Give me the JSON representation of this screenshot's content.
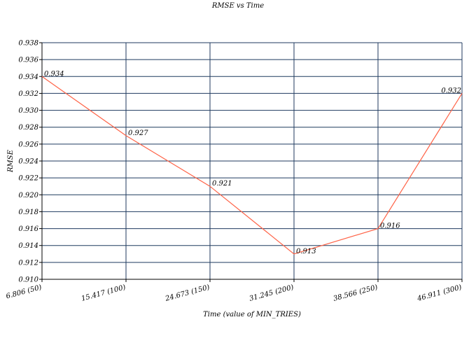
{
  "chart_data": {
    "type": "line",
    "title": "RMSE vs Time",
    "xlabel": "Time (value of MIN_TRIES)",
    "ylabel": "RMSE",
    "categories": [
      "6.806 (50)",
      "15.417 (100)",
      "24.673 (150)",
      "31.245 (200)",
      "38.566 (250)",
      "46.911 (300)"
    ],
    "values": [
      0.934,
      0.927,
      0.921,
      0.913,
      0.916,
      0.932
    ],
    "data_labels": [
      "0.934",
      "0.927",
      "0.921",
      "0.913",
      "0.916",
      "0.932"
    ],
    "ylim": [
      0.91,
      0.938
    ],
    "y_ticks": [
      "0.910",
      "0.912",
      "0.914",
      "0.916",
      "0.918",
      "0.920",
      "0.922",
      "0.924",
      "0.926",
      "0.928",
      "0.930",
      "0.932",
      "0.934",
      "0.936",
      "0.938"
    ],
    "grid": true,
    "colors": {
      "line": "#ff6347",
      "grid": "#1f3a5f"
    }
  }
}
